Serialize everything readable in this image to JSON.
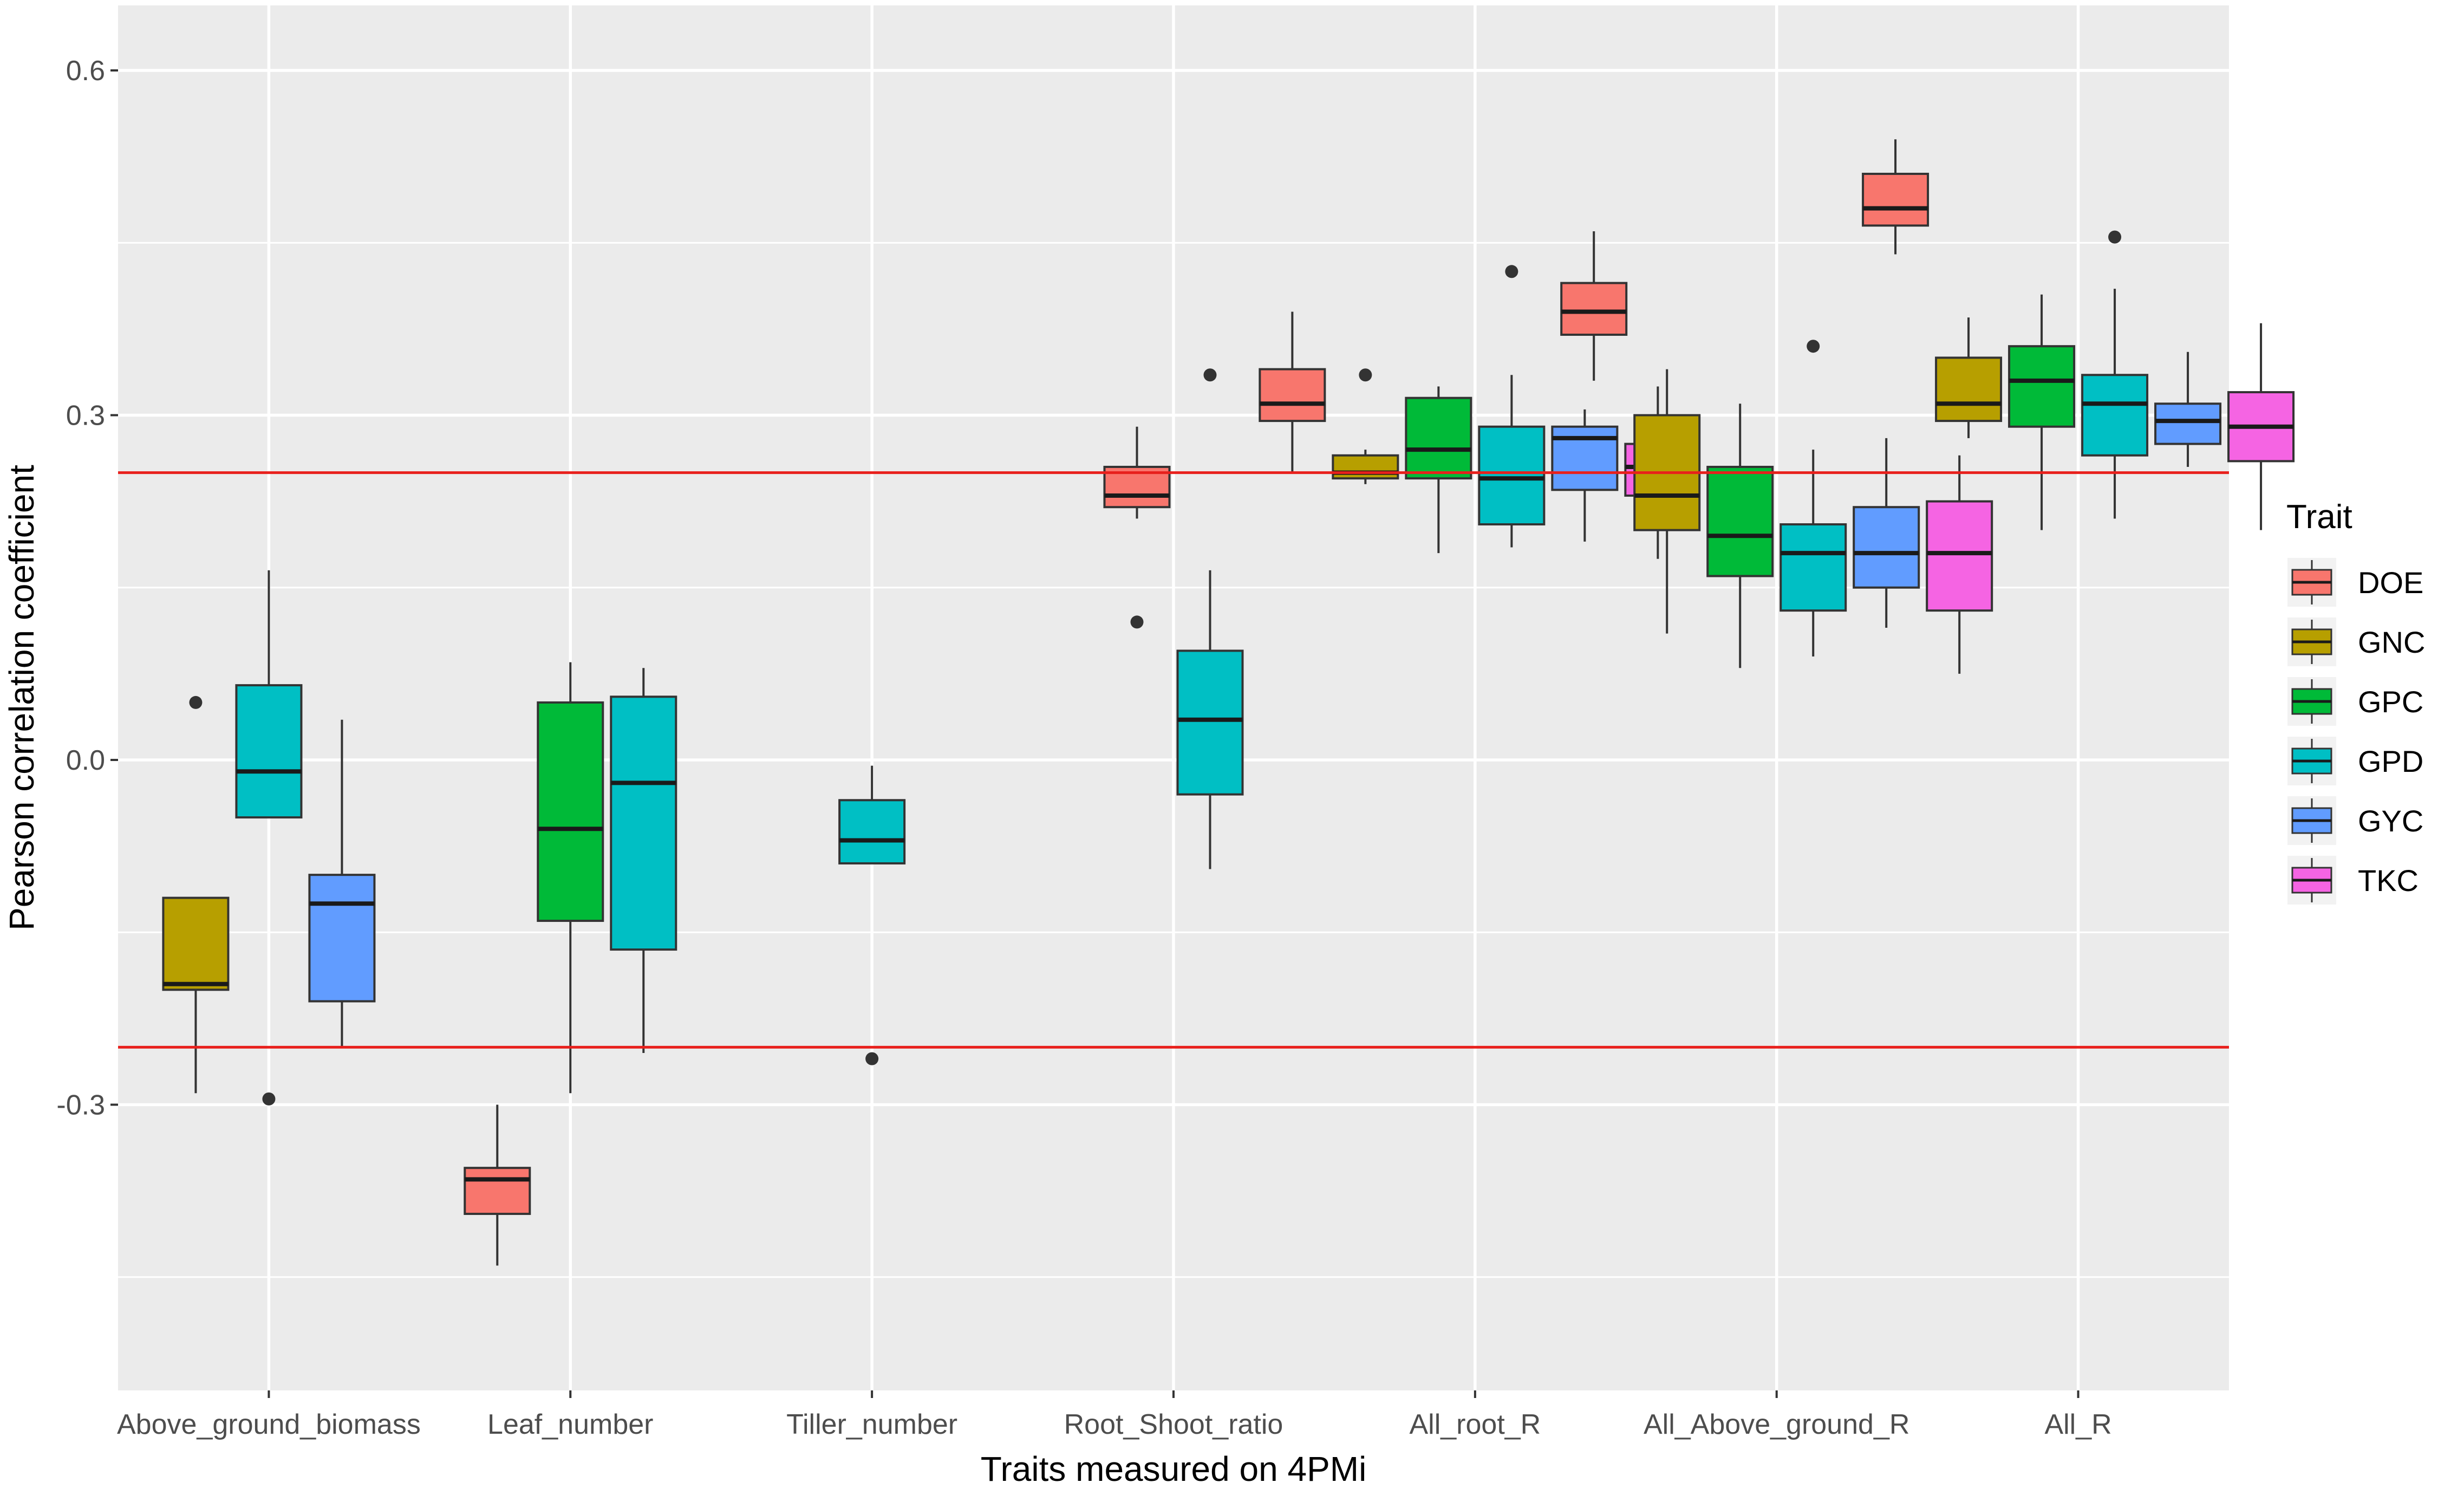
{
  "chart_data": {
    "type": "boxplot",
    "xlabel": "Traits measured on 4PMi",
    "ylabel": "Pearson correlation coefficient",
    "ylim": [
      -0.55,
      0.66
    ],
    "y_ticks": [
      -0.3,
      0.0,
      0.3,
      0.6
    ],
    "y_tick_labels": [
      "-0.3",
      "0.0",
      "0.3",
      "0.6"
    ],
    "grid": true,
    "categories": [
      "Above_ground_biomass",
      "Leaf_number",
      "Tiller_number",
      "Root_Shoot_ratio",
      "All_root_R",
      "All_Above_ground_R",
      "All_R"
    ],
    "reference_lines": [
      0.25,
      -0.25
    ],
    "reference_line_color": "#e8201c",
    "legend": {
      "title": "Trait",
      "position": "right",
      "entries": [
        {
          "name": "DOE",
          "color": "#f8766d"
        },
        {
          "name": "GNC",
          "color": "#b79f00"
        },
        {
          "name": "GPC",
          "color": "#00ba38"
        },
        {
          "name": "GPD",
          "color": "#00bfc4"
        },
        {
          "name": "GYC",
          "color": "#619cff"
        },
        {
          "name": "TKC",
          "color": "#f564e3"
        }
      ]
    },
    "series": [
      {
        "name": "DOE",
        "boxes": [
          {
            "category": "Leaf_number",
            "whisker_low": -0.44,
            "q1": -0.395,
            "median": -0.365,
            "q3": -0.355,
            "whisker_high": -0.3,
            "outliers": []
          },
          {
            "category": "Root_Shoot_ratio",
            "whisker_low": 0.21,
            "q1": 0.22,
            "median": 0.23,
            "q3": 0.255,
            "whisker_high": 0.29,
            "outliers": [
              0.12
            ]
          },
          {
            "category": "All_root_R",
            "whisker_low": 0.25,
            "q1": 0.295,
            "median": 0.31,
            "q3": 0.34,
            "whisker_high": 0.39,
            "outliers": []
          },
          {
            "category": "All_Above_ground_R",
            "whisker_low": 0.33,
            "q1": 0.37,
            "median": 0.39,
            "q3": 0.415,
            "whisker_high": 0.46,
            "outliers": []
          },
          {
            "category": "All_R",
            "whisker_low": 0.44,
            "q1": 0.465,
            "median": 0.48,
            "q3": 0.51,
            "whisker_high": 0.54,
            "outliers": []
          }
        ]
      },
      {
        "name": "GNC",
        "boxes": [
          {
            "category": "Above_ground_biomass",
            "whisker_low": -0.29,
            "q1": -0.2,
            "median": -0.195,
            "q3": -0.12,
            "whisker_high": -0.12,
            "outliers": [
              0.05
            ]
          },
          {
            "category": "All_root_R",
            "whisker_low": 0.24,
            "q1": 0.245,
            "median": 0.25,
            "q3": 0.265,
            "whisker_high": 0.27,
            "outliers": [
              0.335
            ]
          },
          {
            "category": "All_Above_ground_R",
            "whisker_low": 0.11,
            "q1": 0.2,
            "median": 0.23,
            "q3": 0.3,
            "whisker_high": 0.34,
            "outliers": []
          },
          {
            "category": "All_R",
            "whisker_low": 0.28,
            "q1": 0.295,
            "median": 0.31,
            "q3": 0.35,
            "whisker_high": 0.385,
            "outliers": []
          }
        ]
      },
      {
        "name": "GPC",
        "boxes": [
          {
            "category": "Leaf_number",
            "whisker_low": -0.29,
            "q1": -0.14,
            "median": -0.06,
            "q3": 0.05,
            "whisker_high": 0.085,
            "outliers": []
          },
          {
            "category": "All_root_R",
            "whisker_low": 0.18,
            "q1": 0.245,
            "median": 0.27,
            "q3": 0.315,
            "whisker_high": 0.325,
            "outliers": []
          },
          {
            "category": "All_Above_ground_R",
            "whisker_low": 0.08,
            "q1": 0.16,
            "median": 0.195,
            "q3": 0.255,
            "whisker_high": 0.31,
            "outliers": []
          },
          {
            "category": "All_R",
            "whisker_low": 0.2,
            "q1": 0.29,
            "median": 0.33,
            "q3": 0.36,
            "whisker_high": 0.405,
            "outliers": []
          }
        ]
      },
      {
        "name": "GPD",
        "boxes": [
          {
            "category": "Above_ground_biomass",
            "whisker_low": -0.05,
            "q1": -0.05,
            "median": -0.01,
            "q3": 0.065,
            "whisker_high": 0.165,
            "outliers": [
              -0.295
            ]
          },
          {
            "category": "Leaf_number",
            "whisker_low": -0.255,
            "q1": -0.165,
            "median": -0.02,
            "q3": 0.055,
            "whisker_high": 0.08,
            "outliers": []
          },
          {
            "category": "Tiller_number",
            "whisker_low": -0.09,
            "q1": -0.09,
            "median": -0.07,
            "q3": -0.035,
            "whisker_high": -0.005,
            "outliers": [
              -0.26
            ]
          },
          {
            "category": "Root_Shoot_ratio",
            "whisker_low": -0.095,
            "q1": -0.03,
            "median": 0.035,
            "q3": 0.095,
            "whisker_high": 0.165,
            "outliers": [
              0.335
            ]
          },
          {
            "category": "All_root_R",
            "whisker_low": 0.185,
            "q1": 0.205,
            "median": 0.245,
            "q3": 0.29,
            "whisker_high": 0.335,
            "outliers": [
              0.425
            ]
          },
          {
            "category": "All_Above_ground_R",
            "whisker_low": 0.09,
            "q1": 0.13,
            "median": 0.18,
            "q3": 0.205,
            "whisker_high": 0.27,
            "outliers": [
              0.36
            ]
          },
          {
            "category": "All_R",
            "whisker_low": 0.21,
            "q1": 0.265,
            "median": 0.31,
            "q3": 0.335,
            "whisker_high": 0.41,
            "outliers": [
              0.455
            ]
          }
        ]
      },
      {
        "name": "GYC",
        "boxes": [
          {
            "category": "Above_ground_biomass",
            "whisker_low": -0.25,
            "q1": -0.21,
            "median": -0.125,
            "q3": -0.1,
            "whisker_high": 0.035,
            "outliers": []
          },
          {
            "category": "All_root_R",
            "whisker_low": 0.19,
            "q1": 0.235,
            "median": 0.28,
            "q3": 0.29,
            "whisker_high": 0.305,
            "outliers": []
          },
          {
            "category": "All_Above_ground_R",
            "whisker_low": 0.115,
            "q1": 0.15,
            "median": 0.18,
            "q3": 0.22,
            "whisker_high": 0.28,
            "outliers": []
          },
          {
            "category": "All_R",
            "whisker_low": 0.255,
            "q1": 0.275,
            "median": 0.295,
            "q3": 0.31,
            "whisker_high": 0.355,
            "outliers": []
          }
        ]
      },
      {
        "name": "TKC",
        "boxes": [
          {
            "category": "All_root_R",
            "whisker_low": 0.175,
            "q1": 0.23,
            "median": 0.255,
            "q3": 0.275,
            "whisker_high": 0.325,
            "outliers": []
          },
          {
            "category": "All_Above_ground_R",
            "whisker_low": 0.075,
            "q1": 0.13,
            "median": 0.18,
            "q3": 0.225,
            "whisker_high": 0.265,
            "outliers": []
          },
          {
            "category": "All_R",
            "whisker_low": 0.2,
            "q1": 0.26,
            "median": 0.29,
            "q3": 0.32,
            "whisker_high": 0.38,
            "outliers": []
          }
        ]
      }
    ]
  }
}
